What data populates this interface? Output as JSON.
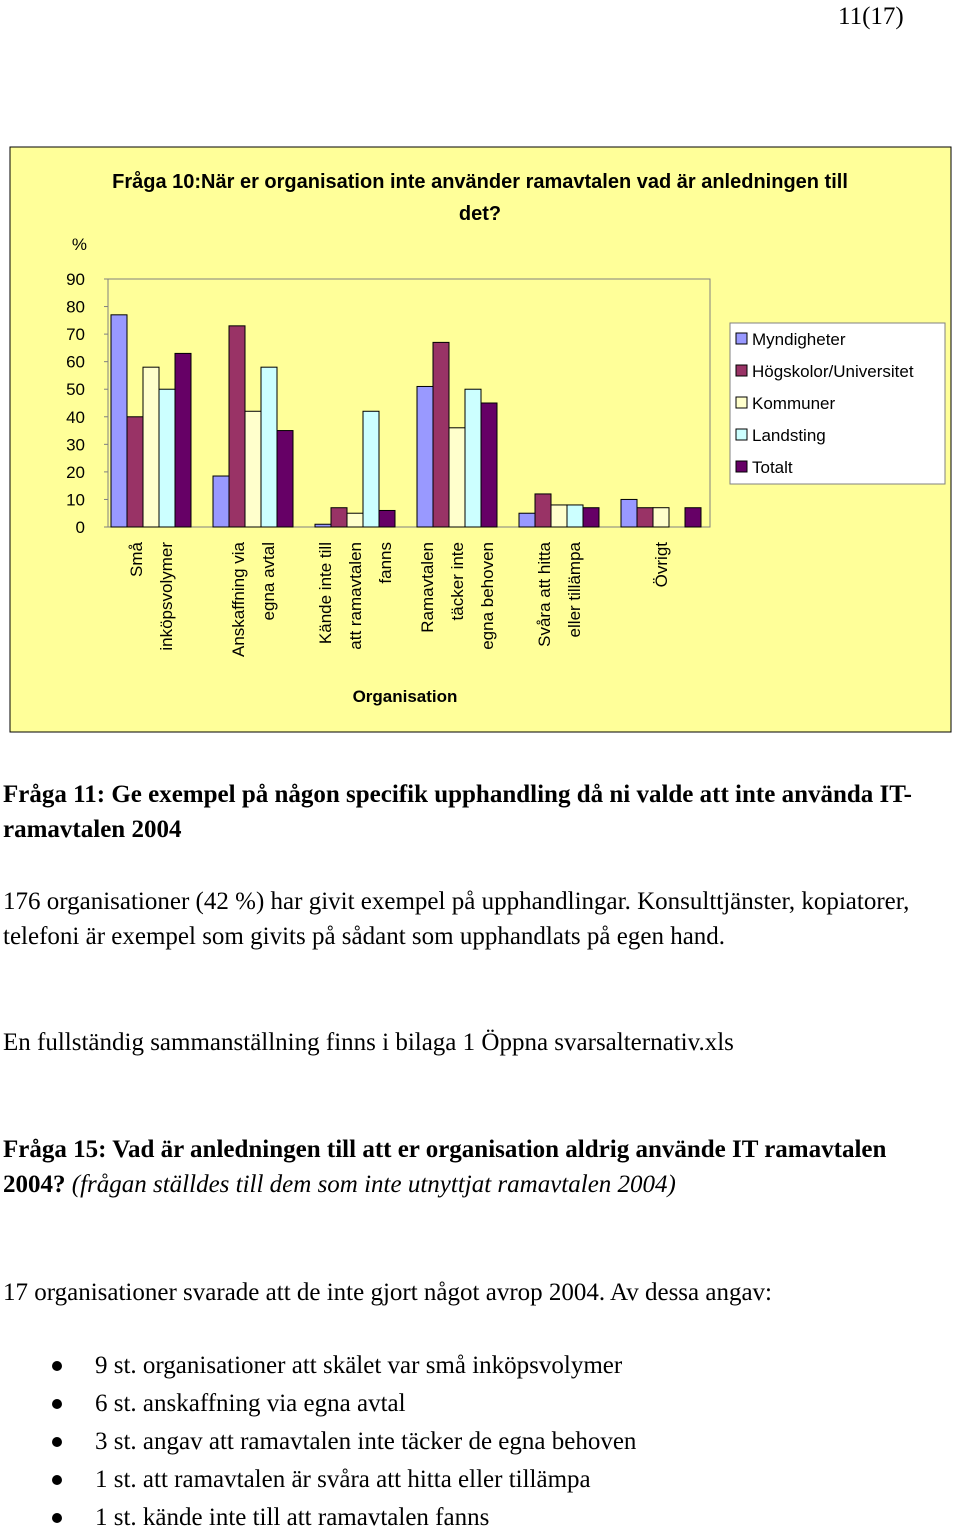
{
  "page_number": "11(17)",
  "chart_data": {
    "type": "bar",
    "title": "Fråga 10:När er organisation inte använder ramavtalen vad är anledningen till det?",
    "y_axis_label": "%",
    "x_axis_label": "Organisation",
    "categories": [
      "Små\ninköpsvolymer",
      "Anskaffning via\negna avtal",
      "Kände inte till\natt ramavtalen\nfanns",
      "Ramavtalen\ntäcker inte\negna behoven",
      "Svåra att hitta\neller tillämpa",
      "Övrigt"
    ],
    "series": [
      {
        "name": "Myndigheter",
        "color": "#9999ff",
        "values": [
          77,
          18.5,
          1,
          51,
          5,
          10
        ]
      },
      {
        "name": "Högskolor/Universitet",
        "color": "#993366",
        "values": [
          40,
          73,
          7,
          67,
          12,
          7
        ]
      },
      {
        "name": "Kommuner",
        "color": "#ffffcc",
        "values": [
          58,
          42,
          5,
          36,
          8,
          7
        ]
      },
      {
        "name": "Landsting",
        "color": "#ccffff",
        "values": [
          50,
          58,
          42,
          50,
          8,
          null
        ]
      },
      {
        "name": "Totalt",
        "color": "#660066",
        "values": [
          63,
          35,
          6,
          45,
          7,
          7
        ]
      }
    ],
    "ylim": [
      0,
      90
    ],
    "yticks": [
      0,
      10,
      20,
      30,
      40,
      50,
      60,
      70,
      80,
      90
    ]
  },
  "q11": {
    "heading": "Fråga 11: Ge exempel på någon specifik upphandling då ni valde att inte använda IT-ramavtalen 2004",
    "paragraphs": [
      "176 organisationer (42 %) har givit exempel på upphandlingar. Konsulttjänster, kopiatorer, telefoni är exempel som givits på sådant som upphandlats på egen hand.",
      "En fullständig sammanställning finns i bilaga 1 Öppna svarsalternativ.xls"
    ]
  },
  "q15": {
    "heading": "Fråga 15: Vad är anledningen till att er organisation aldrig använde IT ramavtalen 2004?",
    "note": "(frågan ställdes till dem som inte utnyttjat ramavtalen 2004)",
    "intro": "17 organisationer svarade att de inte gjort något avrop 2004. Av dessa angav:",
    "bullets": [
      "9 st. organisationer att skälet var små inköpsvolymer",
      "6 st. anskaffning via egna avtal",
      "3 st.  angav att ramavtalen inte täcker de egna behoven",
      "1 st. att ramavtalen är svåra att hitta eller tillämpa",
      "1 st.  kände inte till att ramavtalen fanns"
    ]
  }
}
